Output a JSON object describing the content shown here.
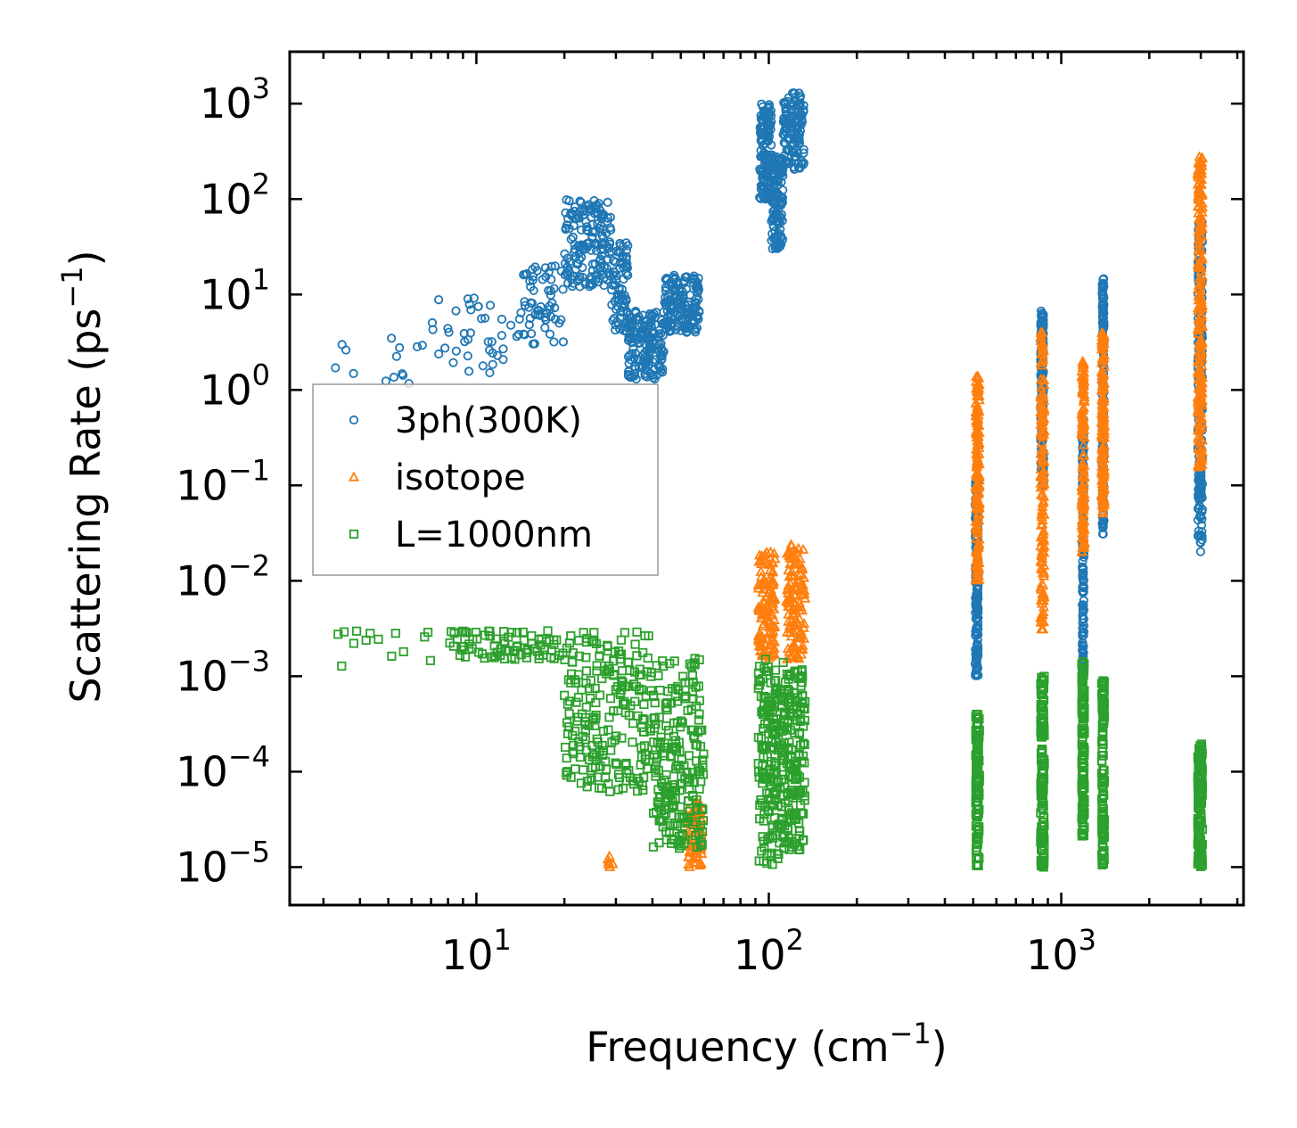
{
  "chart_data": {
    "type": "scatter",
    "xscale": "log",
    "yscale": "log",
    "xlim": [
      2.3,
      4200
    ],
    "ylim": [
      4e-06,
      3500
    ],
    "xlabel": "Frequency (cm",
    "xlabel_sup": "−1",
    "xlabel_end": ")",
    "ylabel": "Scattering Rate (ps",
    "ylabel_sup": "−1",
    "ylabel_end": ")",
    "x_tick_labels": [
      {
        "value": 10,
        "base": "10",
        "exp": "1"
      },
      {
        "value": 100,
        "base": "10",
        "exp": "2"
      },
      {
        "value": 1000,
        "base": "10",
        "exp": "3"
      }
    ],
    "y_tick_labels": [
      {
        "value": 1000.0,
        "base": "10",
        "exp": "3"
      },
      {
        "value": 100.0,
        "base": "10",
        "exp": "2"
      },
      {
        "value": 10.0,
        "base": "10",
        "exp": "1"
      },
      {
        "value": 1.0,
        "base": "10",
        "exp": "0"
      },
      {
        "value": 0.1,
        "base": "10",
        "exp": "−1"
      },
      {
        "value": 0.01,
        "base": "10",
        "exp": "−2"
      },
      {
        "value": 0.001,
        "base": "10",
        "exp": "−3"
      },
      {
        "value": 0.0001,
        "base": "10",
        "exp": "−4"
      },
      {
        "value": 1e-05,
        "base": "10",
        "exp": "−5"
      }
    ],
    "legend": {
      "position": "center-left"
    },
    "series": [
      {
        "name": "3ph(300K)",
        "marker": "circle",
        "color": "#1f77b4",
        "clusters": [
          {
            "x": [
              3.0,
              7.0
            ],
            "y": [
              0.9,
              3.5
            ],
            "n": 14
          },
          {
            "x": [
              7.0,
              14.0
            ],
            "y": [
              1.5,
              10.0
            ],
            "n": 40
          },
          {
            "x": [
              14.0,
              20.0
            ],
            "y": [
              3.0,
              20.0
            ],
            "n": 60
          },
          {
            "x": [
              20.0,
              29.0
            ],
            "y": [
              12.0,
              100.0
            ],
            "n": 160
          },
          {
            "x": [
              29.0,
              33.0
            ],
            "y": [
              4.0,
              35.0
            ],
            "n": 80
          },
          {
            "x": [
              33.0,
              44.0
            ],
            "y": [
              1.3,
              7.0
            ],
            "n": 160
          },
          {
            "x": [
              44.0,
              58.0
            ],
            "y": [
              4.0,
              16.0
            ],
            "n": 160
          },
          {
            "x": [
              93.0,
              102.0
            ],
            "y": [
              100.0,
              1000.0
            ],
            "n": 140
          },
          {
            "x": [
              102.0,
              112.0
            ],
            "y": [
              30.0,
              300.0
            ],
            "n": 120
          },
          {
            "x": [
              112.0,
              132.0
            ],
            "y": [
              200.0,
              1300.0
            ],
            "n": 120
          },
          {
            "x": [
              508.0,
              520.0
            ],
            "y": [
              0.001,
              0.12
            ],
            "n": 180
          },
          {
            "x": [
              850.0,
              870.0
            ],
            "y": [
              0.1,
              7.0
            ],
            "n": 160
          },
          {
            "x": [
              1180.0,
              1195.0
            ],
            "y": [
              0.001,
              0.5
            ],
            "n": 160
          },
          {
            "x": [
              1380.0,
              1400.0
            ],
            "y": [
              0.03,
              15.0
            ],
            "n": 180
          },
          {
            "x": [
              2930.0,
              3040.0
            ],
            "y": [
              0.02,
              60.0
            ],
            "n": 200
          }
        ]
      },
      {
        "name": "isotope",
        "marker": "triangle",
        "color": "#ff7f0e",
        "clusters": [
          {
            "x": [
              28.0,
              30.0
            ],
            "y": [
              1e-05,
              1.3e-05
            ],
            "n": 6
          },
          {
            "x": [
              53.0,
              59.0
            ],
            "y": [
              1e-05,
              5e-05
            ],
            "n": 70
          },
          {
            "x": [
              92.0,
              105.0
            ],
            "y": [
              0.0015,
              0.02
            ],
            "n": 120
          },
          {
            "x": [
              115.0,
              133.0
            ],
            "y": [
              0.0015,
              0.025
            ],
            "n": 120
          },
          {
            "x": [
              510.0,
              525.0
            ],
            "y": [
              0.01,
              1.4
            ],
            "n": 160
          },
          {
            "x": [
              850.0,
              875.0
            ],
            "y": [
              0.003,
              4.0
            ],
            "n": 160
          },
          {
            "x": [
              1175.0,
              1200.0
            ],
            "y": [
              0.02,
              2.0
            ],
            "n": 140
          },
          {
            "x": [
              1375.0,
              1405.0
            ],
            "y": [
              0.05,
              4.0
            ],
            "n": 150
          },
          {
            "x": [
              2930.0,
              3040.0
            ],
            "y": [
              0.15,
              300.0
            ],
            "n": 200
          }
        ]
      },
      {
        "name": "L=1000nm",
        "marker": "square",
        "color": "#2ca02c",
        "clusters": [
          {
            "x": [
              3.0,
              8.0
            ],
            "y": [
              0.0012,
              0.003
            ],
            "n": 14
          },
          {
            "x": [
              8.0,
              20.0
            ],
            "y": [
              0.0015,
              0.003
            ],
            "n": 80
          },
          {
            "x": [
              20.0,
              40.0
            ],
            "y": [
              6e-05,
              0.003
            ],
            "n": 220
          },
          {
            "x": [
              40.0,
              60.0
            ],
            "y": [
              1.5e-05,
              0.0016
            ],
            "n": 220
          },
          {
            "x": [
              92.0,
              112.0
            ],
            "y": [
              1e-05,
              0.0015
            ],
            "n": 180
          },
          {
            "x": [
              112.0,
              133.0
            ],
            "y": [
              1.5e-05,
              0.0012
            ],
            "n": 160
          },
          {
            "x": [
              510.0,
              525.0
            ],
            "y": [
              1e-05,
              0.0004
            ],
            "n": 120
          },
          {
            "x": [
              850.0,
              875.0
            ],
            "y": [
              1e-05,
              0.001
            ],
            "n": 130
          },
          {
            "x": [
              1175.0,
              1200.0
            ],
            "y": [
              2e-05,
              0.0015
            ],
            "n": 130
          },
          {
            "x": [
              1375.0,
              1405.0
            ],
            "y": [
              1e-05,
              0.0009
            ],
            "n": 120
          },
          {
            "x": [
              2930.0,
              3040.0
            ],
            "y": [
              1e-05,
              0.0002
            ],
            "n": 140
          }
        ]
      }
    ]
  }
}
